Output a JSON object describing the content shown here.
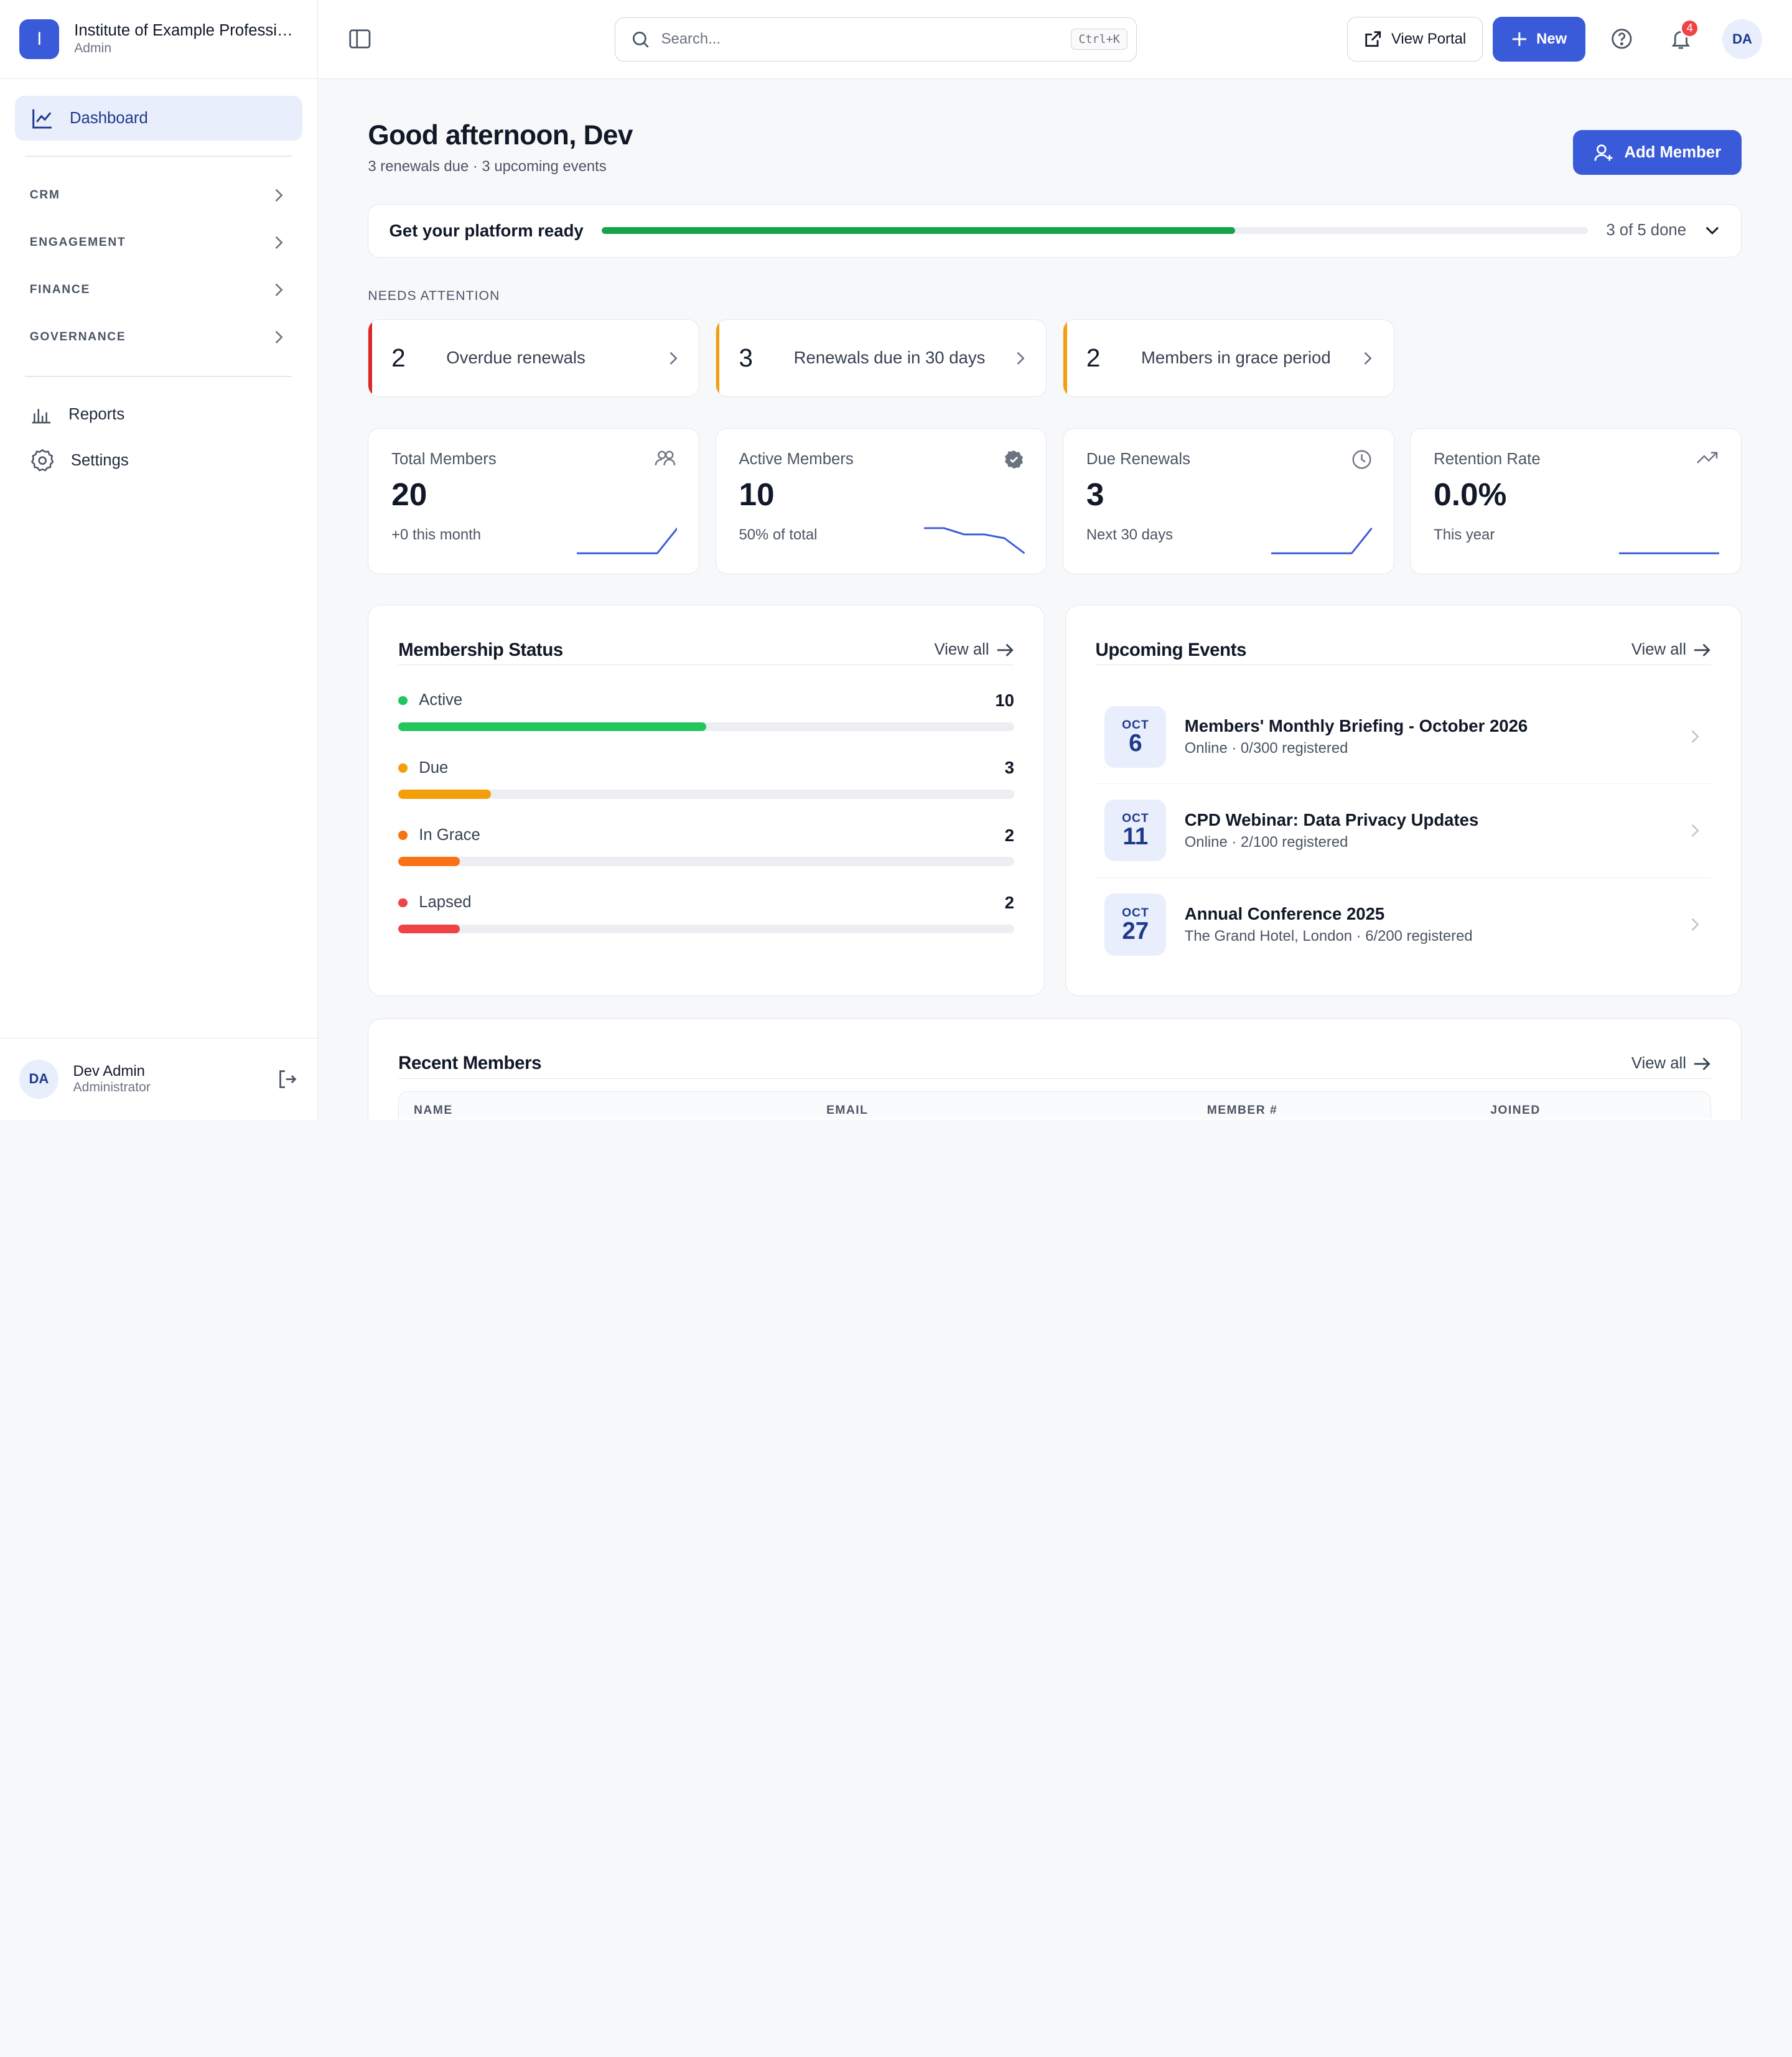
{
  "org": {
    "logo_letter": "I",
    "name": "Institute of Example Professionals",
    "role": "Admin"
  },
  "sidebar": {
    "active": {
      "label": "Dashboard",
      "icon": "chart-line-icon"
    },
    "groups": [
      {
        "label": "CRM"
      },
      {
        "label": "ENGAGEMENT"
      },
      {
        "label": "FINANCE"
      },
      {
        "label": "GOVERNANCE"
      }
    ],
    "items": [
      {
        "label": "Reports",
        "icon": "bar-chart-icon"
      },
      {
        "label": "Settings",
        "icon": "gear-icon"
      }
    ],
    "user": {
      "initials": "DA",
      "name": "Dev Admin",
      "role": "Administrator"
    }
  },
  "topbar": {
    "search_placeholder": "Search...",
    "shortcut": "Ctrl+K",
    "view_portal": "View Portal",
    "new_label": "New",
    "notifications_count": "4",
    "avatar_initials": "DA"
  },
  "hero": {
    "greeting": "Good afternoon, Dev",
    "subtitle": "3 renewals due · 3 upcoming events",
    "add_member": "Add Member"
  },
  "setup": {
    "title": "Get your platform ready",
    "done": 3,
    "total": 5,
    "status": "3 of 5 done"
  },
  "attention": {
    "label": "NEEDS ATTENTION",
    "cards": [
      {
        "count": "2",
        "text": "Overdue renewals",
        "color": "#dc2626"
      },
      {
        "count": "3",
        "text": "Renewals due in 30 days",
        "color": "#f59e0b"
      },
      {
        "count": "2",
        "text": "Members in grace period",
        "color": "#f59e0b"
      }
    ]
  },
  "stats": [
    {
      "label": "Total Members",
      "value": "20",
      "sub": "+0 this month",
      "icon": "users-icon",
      "trend": [
        0,
        0,
        0,
        0,
        0,
        1
      ]
    },
    {
      "label": "Active Members",
      "value": "10",
      "sub": "50% of total",
      "icon": "verified-badge-icon",
      "trend": [
        1,
        1,
        0.75,
        0.75,
        0.6,
        0
      ]
    },
    {
      "label": "Due Renewals",
      "value": "3",
      "sub": "Next 30 days",
      "icon": "clock-icon",
      "trend": [
        0,
        0,
        0,
        0,
        0,
        1
      ]
    },
    {
      "label": "Retention Rate",
      "value": "0.0%",
      "sub": "This year",
      "icon": "trending-up-icon",
      "trend": [
        0,
        0,
        0,
        0,
        0,
        0
      ]
    }
  ],
  "membership": {
    "title": "Membership Status",
    "view_all": "View all",
    "total": 20,
    "rows": [
      {
        "name": "Active",
        "value": "10",
        "color": "#22c55e",
        "fill": 0.5
      },
      {
        "name": "Due",
        "value": "3",
        "color": "#f59e0b",
        "fill": 0.15
      },
      {
        "name": "In Grace",
        "value": "2",
        "color": "#f97316",
        "fill": 0.1
      },
      {
        "name": "Lapsed",
        "value": "2",
        "color": "#ef4444",
        "fill": 0.1
      }
    ]
  },
  "events": {
    "title": "Upcoming Events",
    "view_all": "View all",
    "items": [
      {
        "month": "OCT",
        "day": "6",
        "title": "Members' Monthly Briefing - October 2026",
        "sub": "Online · 0/300 registered"
      },
      {
        "month": "OCT",
        "day": "11",
        "title": "CPD Webinar: Data Privacy Updates",
        "sub": "Online · 2/100 registered"
      },
      {
        "month": "OCT",
        "day": "27",
        "title": "Annual Conference 2025",
        "sub": "The Grand Hotel, London · 6/200 registered"
      }
    ]
  },
  "recent": {
    "title": "Recent Members",
    "view_all": "View all",
    "columns": [
      "NAME",
      "EMAIL",
      "MEMBER #",
      "JOINED"
    ]
  },
  "colors": {
    "accent": "#3a5bd9",
    "progress": "#16a34a",
    "spark": "#3a5bd9"
  }
}
